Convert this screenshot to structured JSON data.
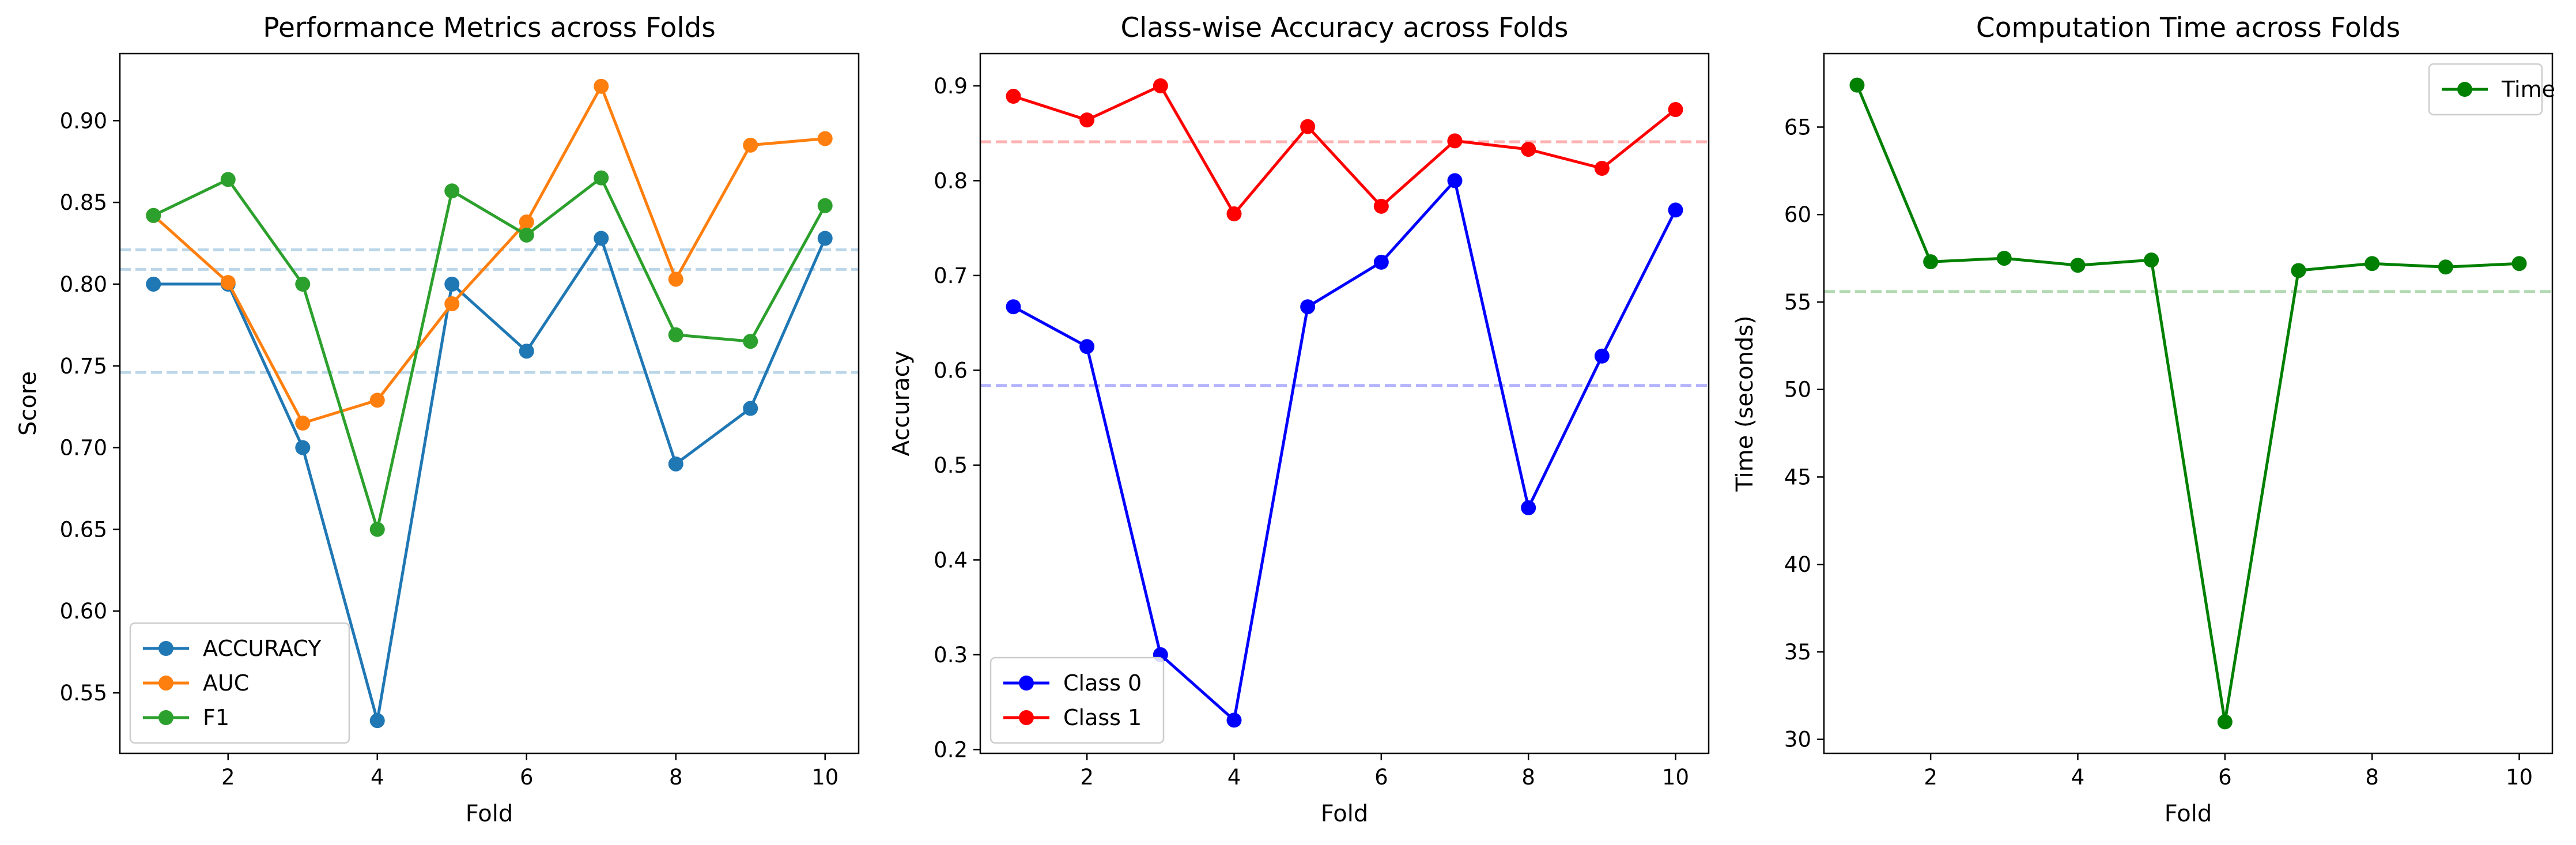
{
  "chart_data": [
    {
      "type": "line",
      "title": "Performance Metrics across Folds",
      "xlabel": "Fold",
      "ylabel": "Score",
      "x": [
        1,
        2,
        3,
        4,
        5,
        6,
        7,
        8,
        9,
        10
      ],
      "xlim": [
        0.55,
        10.45
      ],
      "ylim": [
        0.513,
        0.941
      ],
      "xticks": [
        2,
        4,
        6,
        8,
        10
      ],
      "yticks": [
        0.55,
        0.6,
        0.65,
        0.7,
        0.75,
        0.8,
        0.85,
        0.9
      ],
      "ytick_labels": [
        "0.55",
        "0.60",
        "0.65",
        "0.70",
        "0.75",
        "0.80",
        "0.85",
        "0.90"
      ],
      "grid": false,
      "legend_position": "lower-left",
      "series": [
        {
          "name": "ACCURACY",
          "color": "#1f77b4",
          "values": [
            0.8,
            0.8,
            0.7,
            0.533,
            0.8,
            0.759,
            0.828,
            0.69,
            0.724,
            0.828
          ]
        },
        {
          "name": "AUC",
          "color": "#ff7f0e",
          "values": [
            0.842,
            0.801,
            0.715,
            0.729,
            0.788,
            0.838,
            0.921,
            0.803,
            0.885,
            0.889
          ]
        },
        {
          "name": "F1",
          "color": "#2ca02c",
          "values": [
            0.842,
            0.864,
            0.8,
            0.65,
            0.857,
            0.83,
            0.865,
            0.769,
            0.765,
            0.848
          ]
        }
      ],
      "reference_lines": [
        {
          "y": 0.746,
          "color": "#1f77b4",
          "style": "dashed"
        },
        {
          "y": 0.821,
          "color": "#1f77b4",
          "style": "dashed"
        },
        {
          "y": 0.809,
          "color": "#1f77b4",
          "style": "dashed"
        }
      ]
    },
    {
      "type": "line",
      "title": "Class-wise Accuracy across Folds",
      "xlabel": "Fold",
      "ylabel": "Accuracy",
      "x": [
        1,
        2,
        3,
        4,
        5,
        6,
        7,
        8,
        9,
        10
      ],
      "xlim": [
        0.55,
        10.45
      ],
      "ylim": [
        0.196,
        0.934
      ],
      "xticks": [
        2,
        4,
        6,
        8,
        10
      ],
      "yticks": [
        0.2,
        0.3,
        0.4,
        0.5,
        0.6,
        0.7,
        0.8,
        0.9
      ],
      "ytick_labels": [
        "0.2",
        "0.3",
        "0.4",
        "0.5",
        "0.6",
        "0.7",
        "0.8",
        "0.9"
      ],
      "grid": false,
      "legend_position": "lower-left",
      "series": [
        {
          "name": "Class 0",
          "color": "#0000ff",
          "values": [
            0.667,
            0.625,
            0.3,
            0.231,
            0.667,
            0.714,
            0.8,
            0.455,
            0.615,
            0.769
          ]
        },
        {
          "name": "Class 1",
          "color": "#ff0000",
          "values": [
            0.889,
            0.864,
            0.9,
            0.765,
            0.857,
            0.773,
            0.842,
            0.833,
            0.813,
            0.875
          ]
        }
      ],
      "reference_lines": [
        {
          "y": 0.584,
          "color": "#0000ff",
          "style": "dashed"
        },
        {
          "y": 0.841,
          "color": "#ff0000",
          "style": "dashed"
        }
      ]
    },
    {
      "type": "line",
      "title": "Computation Time across Folds",
      "xlabel": "Fold",
      "ylabel": "Time (seconds)",
      "x": [
        1,
        2,
        3,
        4,
        5,
        6,
        7,
        8,
        9,
        10
      ],
      "xlim": [
        0.55,
        10.45
      ],
      "ylim": [
        29.2,
        69.2
      ],
      "xticks": [
        2,
        4,
        6,
        8,
        10
      ],
      "yticks": [
        30,
        35,
        40,
        45,
        50,
        55,
        60,
        65
      ],
      "ytick_labels": [
        "30",
        "35",
        "40",
        "45",
        "50",
        "55",
        "60",
        "65"
      ],
      "grid": false,
      "legend_position": "upper-right",
      "series": [
        {
          "name": "Time",
          "color": "#008000",
          "values": [
            67.4,
            57.3,
            57.5,
            57.1,
            57.4,
            31.0,
            56.8,
            57.2,
            57.0,
            57.2
          ]
        }
      ],
      "reference_lines": [
        {
          "y": 55.6,
          "color": "#008000",
          "style": "dashed"
        }
      ]
    }
  ]
}
